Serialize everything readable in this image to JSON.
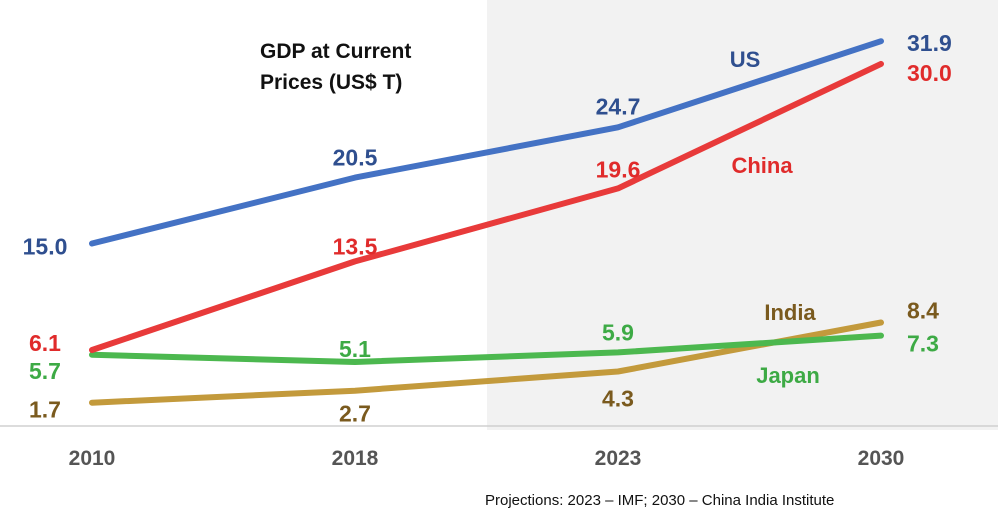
{
  "chart_data": {
    "type": "line",
    "title": "GDP at Current Prices (US$ T)",
    "title_lines": [
      "GDP at Current",
      "Prices (US$ T)"
    ],
    "categories": [
      "2010",
      "2018",
      "2023",
      "2030"
    ],
    "projection_start": "2023",
    "ylim": [
      0,
      33
    ],
    "grid": false,
    "legend": "inline labels",
    "series": [
      {
        "name": "US",
        "values": [
          15.0,
          20.5,
          24.7,
          31.9
        ],
        "color": "#4472C4",
        "label_color": "#2F4F8F",
        "labels": [
          "15.0",
          "20.5",
          "24.7",
          "31.9"
        ]
      },
      {
        "name": "China",
        "values": [
          6.1,
          13.5,
          19.6,
          30.0
        ],
        "color": "#E83A3A",
        "label_color": "#E02B2B",
        "labels": [
          "6.1",
          "13.5",
          "19.6",
          "30.0"
        ]
      },
      {
        "name": "India",
        "values": [
          1.7,
          2.7,
          4.3,
          8.4
        ],
        "color": "#C39A3C",
        "label_color": "#7A5A1E",
        "labels": [
          "1.7",
          "2.7",
          "4.3",
          "8.4"
        ]
      },
      {
        "name": "Japan",
        "values": [
          5.7,
          5.1,
          5.9,
          7.3
        ],
        "color": "#4CB84F",
        "label_color": "#3DAA45",
        "labels": [
          "5.7",
          "5.1",
          "5.9",
          "7.3"
        ]
      }
    ]
  },
  "footnote": "Projections: 2023 – IMF; 2030 – China India Institute"
}
